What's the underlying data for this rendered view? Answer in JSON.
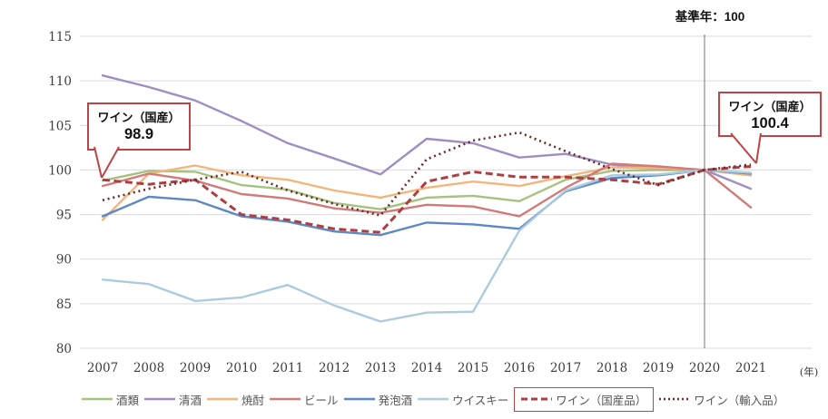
{
  "header": {
    "base_year_note": "基準年：100"
  },
  "axis": {
    "unit_label": "(年)"
  },
  "annotations": {
    "start_callout": {
      "label": "ワイン（国産）",
      "value": "98.9"
    },
    "end_callout": {
      "label": "ワイン（国産）",
      "value": "100.4"
    }
  },
  "chart_data": {
    "type": "line",
    "x": [
      2007,
      2008,
      2009,
      2010,
      2011,
      2012,
      2013,
      2014,
      2015,
      2016,
      2017,
      2018,
      2019,
      2020,
      2021
    ],
    "ylim": [
      80,
      115
    ],
    "ytick_step": 5,
    "grid": true,
    "legend_position": "bottom",
    "base_year_x": 2020,
    "series": [
      {
        "name": "酒類",
        "color": "#a5c27f",
        "dash": "solid",
        "legend_boxed": false,
        "values": [
          98.8,
          99.9,
          99.8,
          98.3,
          97.8,
          96.3,
          95.6,
          96.9,
          97.1,
          96.5,
          98.9,
          99.9,
          100.0,
          100.0,
          99.4
        ]
      },
      {
        "name": "清酒",
        "color": "#9d8ec4",
        "dash": "solid",
        "legend_boxed": false,
        "values": [
          110.6,
          109.3,
          107.8,
          105.5,
          103.0,
          101.3,
          99.5,
          103.5,
          103.0,
          101.4,
          101.8,
          100.6,
          100.1,
          100.0,
          97.9
        ]
      },
      {
        "name": "焼酎",
        "color": "#f3b57c",
        "dash": "solid",
        "legend_boxed": false,
        "values": [
          94.4,
          99.6,
          100.5,
          99.4,
          98.9,
          97.7,
          96.9,
          98.0,
          98.7,
          98.2,
          99.3,
          100.3,
          100.2,
          100.0,
          99.4
        ]
      },
      {
        "name": "ビール",
        "color": "#d17a7a",
        "dash": "solid",
        "legend_boxed": false,
        "values": [
          98.2,
          99.6,
          98.8,
          97.3,
          96.8,
          95.7,
          95.2,
          96.1,
          95.9,
          94.8,
          98.0,
          100.7,
          100.4,
          100.0,
          95.8
        ]
      },
      {
        "name": "発泡酒",
        "color": "#5d87c6",
        "dash": "solid",
        "legend_boxed": false,
        "values": [
          94.8,
          97.0,
          96.6,
          94.8,
          94.2,
          93.1,
          92.7,
          94.1,
          93.9,
          93.4,
          97.6,
          99.1,
          99.4,
          100.0,
          99.6
        ]
      },
      {
        "name": "ウイスキー",
        "color": "#abcbde",
        "dash": "solid",
        "legend_boxed": false,
        "values": [
          87.7,
          87.2,
          85.3,
          85.7,
          87.1,
          84.8,
          83.0,
          84.0,
          84.1,
          93.2,
          97.7,
          99.4,
          99.5,
          100.0,
          99.7
        ]
      },
      {
        "name": "ワイン（国産品）",
        "color": "#ad3f42",
        "dash": "dashed",
        "legend_boxed": true,
        "values": [
          98.9,
          98.4,
          98.9,
          95.0,
          94.4,
          93.4,
          93.0,
          98.7,
          99.8,
          99.2,
          99.2,
          98.9,
          98.4,
          100.0,
          100.4
        ]
      },
      {
        "name": "ワイン（輸入品）",
        "color": "#6b2a26",
        "dash": "dotted",
        "legend_boxed": false,
        "values": [
          96.6,
          97.9,
          98.9,
          99.8,
          97.7,
          96.2,
          94.9,
          101.2,
          103.3,
          104.2,
          102.1,
          100.1,
          98.3,
          100.0,
          100.6
        ]
      }
    ],
    "colors": {
      "grid": "#d9d9d9",
      "base_year_line": "#888888",
      "callout_border": "#bd4345"
    }
  }
}
